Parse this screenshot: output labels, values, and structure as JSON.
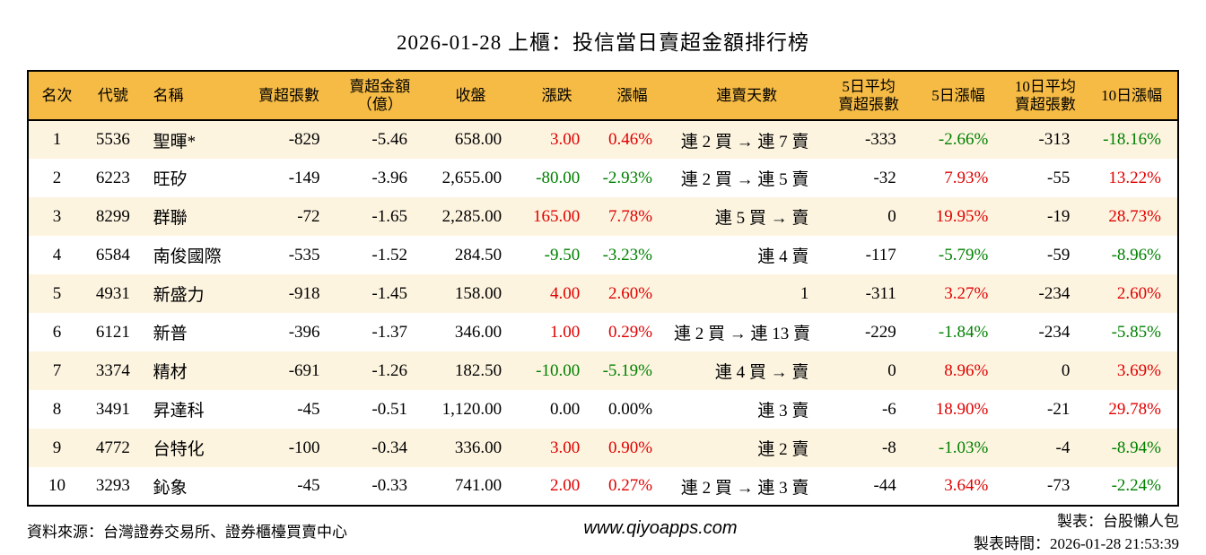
{
  "colors": {
    "up": "#e00000",
    "down": "#008000",
    "flat": "#000000",
    "header_bg": "#f6bb45",
    "row_alt_bg": "#fdf4e0",
    "border": "#000000"
  },
  "chart_data": {
    "type": "table",
    "title": "2026-01-28 上櫃：投信當日賣超金額排行榜",
    "columns": [
      {
        "key": "rank",
        "label": "名次",
        "header_align": "center",
        "align": "center",
        "sign_color": false
      },
      {
        "key": "code",
        "label": "代號",
        "header_align": "center",
        "align": "center",
        "sign_color": false
      },
      {
        "key": "name",
        "label": "名稱",
        "header_align": "left",
        "align": "left",
        "sign_color": false
      },
      {
        "key": "sell-volume",
        "label": "賣超張數",
        "header_align": "center",
        "align": "right",
        "sign_color": false
      },
      {
        "key": "sell-amount",
        "label": "賣超金額\n（億）",
        "header_align": "center",
        "align": "right",
        "sign_color": false
      },
      {
        "key": "close",
        "label": "收盤",
        "header_align": "center",
        "align": "right",
        "sign_color": false
      },
      {
        "key": "change",
        "label": "漲跌",
        "header_align": "center",
        "align": "right",
        "sign_color": true
      },
      {
        "key": "change-pct",
        "label": "漲幅",
        "header_align": "center",
        "align": "right",
        "sign_color": true
      },
      {
        "key": "sell-streak",
        "label": "連賣天數",
        "header_align": "center",
        "align": "right",
        "sign_color": false
      },
      {
        "key": "avg5-volume",
        "label": "5日平均\n賣超張數",
        "header_align": "center",
        "align": "right",
        "sign_color": false
      },
      {
        "key": "pct-5d",
        "label": "5日漲幅",
        "header_align": "center",
        "align": "right",
        "sign_color": true
      },
      {
        "key": "avg10-volume",
        "label": "10日平均\n賣超張數",
        "header_align": "center",
        "align": "right",
        "sign_color": false
      },
      {
        "key": "pct-10d",
        "label": "10日漲幅",
        "header_align": "center",
        "align": "right",
        "sign_color": true
      }
    ],
    "rows": [
      [
        "1",
        "5536",
        "聖暉*",
        "-829",
        "-5.46",
        "658.00",
        "3.00",
        "0.46%",
        "連 2 買 → 連 7 賣",
        "-333",
        "-2.66%",
        "-313",
        "-18.16%"
      ],
      [
        "2",
        "6223",
        "旺矽",
        "-149",
        "-3.96",
        "2,655.00",
        "-80.00",
        "-2.93%",
        "連 2 買 → 連 5 賣",
        "-32",
        "7.93%",
        "-55",
        "13.22%"
      ],
      [
        "3",
        "8299",
        "群聯",
        "-72",
        "-1.65",
        "2,285.00",
        "165.00",
        "7.78%",
        "連 5 買 → 賣",
        "0",
        "19.95%",
        "-19",
        "28.73%"
      ],
      [
        "4",
        "6584",
        "南俊國際",
        "-535",
        "-1.52",
        "284.50",
        "-9.50",
        "-3.23%",
        "連 4 賣",
        "-117",
        "-5.79%",
        "-59",
        "-8.96%"
      ],
      [
        "5",
        "4931",
        "新盛力",
        "-918",
        "-1.45",
        "158.00",
        "4.00",
        "2.60%",
        "1",
        "-311",
        "3.27%",
        "-234",
        "2.60%"
      ],
      [
        "6",
        "6121",
        "新普",
        "-396",
        "-1.37",
        "346.00",
        "1.00",
        "0.29%",
        "連 2 買 → 連 13 賣",
        "-229",
        "-1.84%",
        "-234",
        "-5.85%"
      ],
      [
        "7",
        "3374",
        "精材",
        "-691",
        "-1.26",
        "182.50",
        "-10.00",
        "-5.19%",
        "連 4 買 → 賣",
        "0",
        "8.96%",
        "0",
        "3.69%"
      ],
      [
        "8",
        "3491",
        "昇達科",
        "-45",
        "-0.51",
        "1,120.00",
        "0.00",
        "0.00%",
        "連 3 賣",
        "-6",
        "18.90%",
        "-21",
        "29.78%"
      ],
      [
        "9",
        "4772",
        "台特化",
        "-100",
        "-0.34",
        "336.00",
        "3.00",
        "0.90%",
        "連 2 賣",
        "-8",
        "-1.03%",
        "-4",
        "-8.94%"
      ],
      [
        "10",
        "3293",
        "鈊象",
        "-45",
        "-0.33",
        "741.00",
        "2.00",
        "0.27%",
        "連 2 買 → 連 3 賣",
        "-44",
        "3.64%",
        "-73",
        "-2.24%"
      ]
    ]
  },
  "footer": {
    "source": "資料來源：台灣證券交易所、證券櫃檯買賣中心",
    "website": "www.qiyoapps.com",
    "author": "製表：台股懶人包",
    "generated": "製表時間：2026-01-28 21:53:39"
  }
}
